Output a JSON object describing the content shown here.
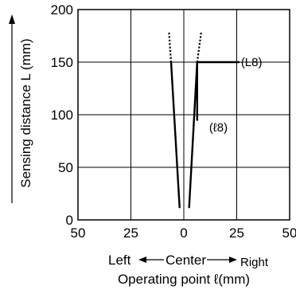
{
  "chart_data": {
    "type": "line",
    "ylabel": "Sensing distance L (mm)",
    "xlabel": "Operating point ℓ(mm)",
    "direction_labels": {
      "left": "Left",
      "center": "Center",
      "right": "Right"
    },
    "xlim": [
      -50,
      50
    ],
    "ylim": [
      0,
      200
    ],
    "x_ticks": [
      -50,
      -25,
      0,
      25,
      50
    ],
    "x_tick_labels": [
      "50",
      "25",
      "0",
      "25",
      "50"
    ],
    "y_ticks": [
      0,
      50,
      100,
      150,
      200
    ],
    "y_tick_labels": [
      "0",
      "50",
      "100",
      "150",
      "200"
    ],
    "grid": true,
    "series": [
      {
        "style": "solid",
        "points": [
          [
            -6.0,
            150
          ],
          [
            -2.0,
            12
          ]
        ]
      },
      {
        "style": "dotted",
        "points": [
          [
            -7.0,
            178
          ],
          [
            -6.0,
            150
          ]
        ]
      },
      {
        "style": "solid",
        "points": [
          [
            6.3,
            150
          ],
          [
            2.5,
            12
          ]
        ]
      },
      {
        "style": "dotted",
        "points": [
          [
            8.2,
            178
          ],
          [
            6.3,
            150
          ]
        ]
      },
      {
        "style": "solid",
        "points": [
          [
            6.3,
            150
          ],
          [
            26,
            150
          ]
        ]
      },
      {
        "style": "solid",
        "points": [
          [
            6.3,
            150
          ],
          [
            6.3,
            95
          ]
        ]
      }
    ],
    "annotations": [
      {
        "text": "(L8)",
        "x": 27,
        "y": 150
      },
      {
        "text": "(ℓ8)",
        "x": 12,
        "y": 88
      }
    ]
  }
}
